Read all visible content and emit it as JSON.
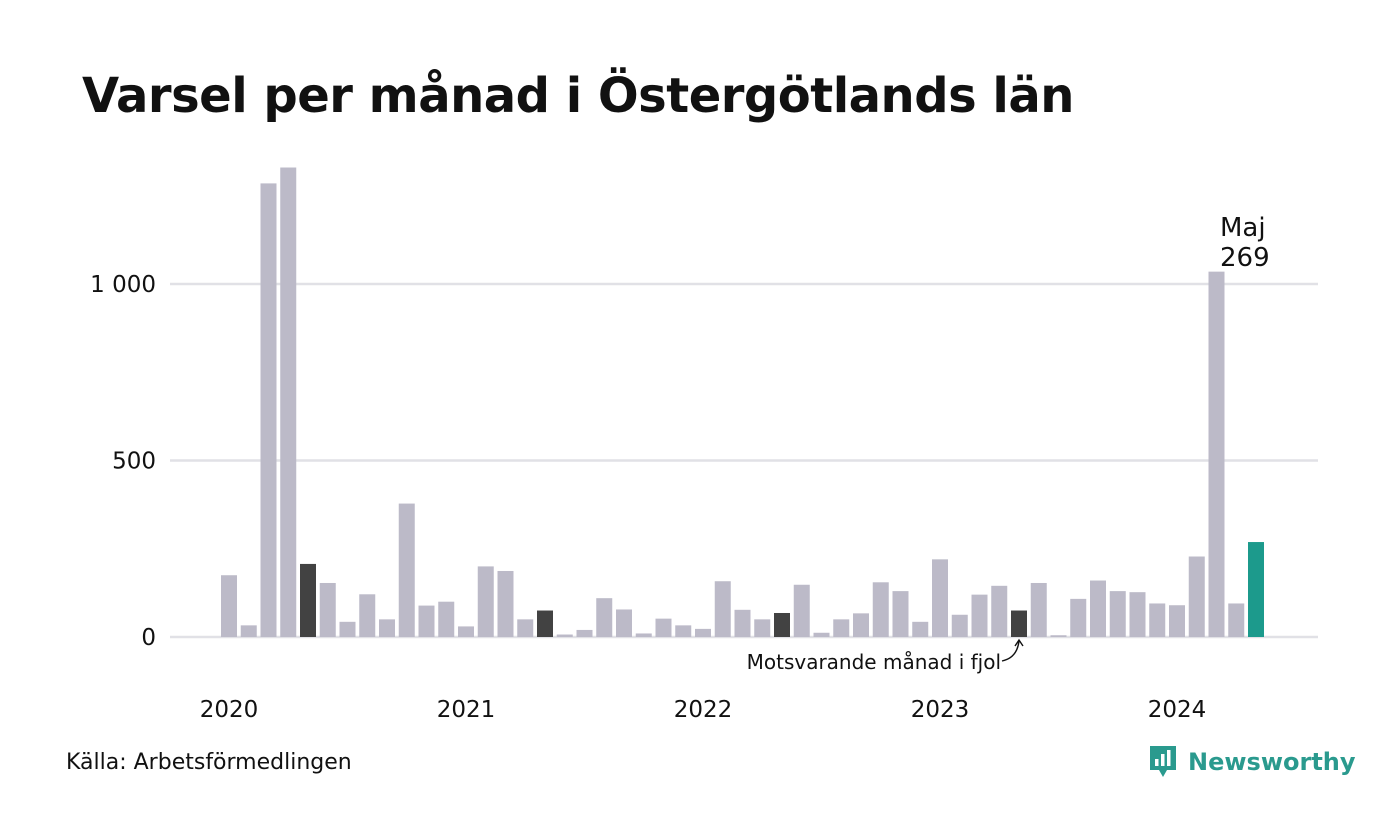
{
  "chart_data": {
    "type": "bar",
    "title": "Varsel per månad i Östergötlands län",
    "xlabel": "",
    "ylabel": "",
    "ylim": [
      0,
      1350
    ],
    "yticks": [
      0,
      500,
      1000
    ],
    "ytick_labels": [
      "0",
      "500",
      "1 000"
    ],
    "year_labels": [
      {
        "label": "2020",
        "month_index": 0
      },
      {
        "label": "2021",
        "month_index": 12
      },
      {
        "label": "2022",
        "month_index": 24
      },
      {
        "label": "2023",
        "month_index": 36
      },
      {
        "label": "2024",
        "month_index": 48
      }
    ],
    "categories": [
      "2020-01",
      "2020-02",
      "2020-03",
      "2020-04",
      "2020-05",
      "2020-06",
      "2020-07",
      "2020-08",
      "2020-09",
      "2020-10",
      "2020-11",
      "2020-12",
      "2021-01",
      "2021-02",
      "2021-03",
      "2021-04",
      "2021-05",
      "2021-06",
      "2021-07",
      "2021-08",
      "2021-09",
      "2021-10",
      "2021-11",
      "2021-12",
      "2022-01",
      "2022-02",
      "2022-03",
      "2022-04",
      "2022-05",
      "2022-06",
      "2022-07",
      "2022-08",
      "2022-09",
      "2022-10",
      "2022-11",
      "2022-12",
      "2023-01",
      "2023-02",
      "2023-03",
      "2023-04",
      "2023-05",
      "2023-06",
      "2023-07",
      "2023-08",
      "2023-09",
      "2023-10",
      "2023-11",
      "2023-12",
      "2024-01",
      "2024-02",
      "2024-03",
      "2024-04",
      "2024-05"
    ],
    "values": [
      175,
      33,
      1285,
      1330,
      207,
      153,
      43,
      121,
      50,
      378,
      89,
      100,
      30,
      200,
      187,
      50,
      75,
      7,
      20,
      110,
      78,
      10,
      52,
      33,
      23,
      158,
      77,
      50,
      68,
      148,
      12,
      50,
      67,
      155,
      130,
      43,
      220,
      63,
      120,
      145,
      75,
      153,
      5,
      108,
      160,
      130,
      127,
      95,
      90,
      228,
      1035,
      95,
      269
    ],
    "highlight_last_years": [
      "2020-05",
      "2021-05",
      "2022-05",
      "2023-05"
    ],
    "current": "2024-05",
    "annotation_current": {
      "line1": "Maj",
      "line2": "269"
    },
    "annotation_previous": "Motsvarande månad i fjol",
    "grid": true,
    "colors": {
      "default": "#bcbac8",
      "previous_years": "#424242",
      "current": "#1c9a8c",
      "grid": "#e1e1e6",
      "text": "#111111"
    }
  },
  "footer": {
    "source": "Källa: Arbetsförmedlingen",
    "brand": "Newsworthy",
    "brand_icon": "newsworthy-logo-icon",
    "brand_color": "#2a9a8e"
  }
}
